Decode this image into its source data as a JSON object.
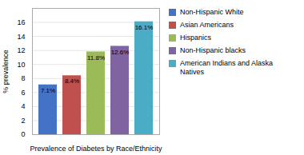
{
  "chart_data": {
    "type": "bar",
    "categories": [
      "Non-Hispanic White",
      "Asian Americans",
      "Hispanics",
      "Non-Hispanic blacks",
      "American Indians and Alaska\nNatives"
    ],
    "values": [
      7.1,
      8.4,
      11.8,
      12.6,
      16.1
    ],
    "value_labels": [
      "7.1%",
      "8.4%",
      "11.8%",
      "12.6%",
      "16.1%"
    ],
    "colors": [
      "#4472C4",
      "#C0504D",
      "#9BBB59",
      "#8064A2",
      "#4BACC6"
    ],
    "xlabel": "Prevalence of Diabetes by Race/Ethnicity",
    "ylabel": "% prevalence",
    "ylim": [
      0,
      18
    ],
    "yticks": [
      0,
      2,
      4,
      6,
      8,
      10,
      12,
      14,
      16
    ],
    "grid": true,
    "legend": "right",
    "data_labels": true,
    "tick_labels": "y"
  }
}
